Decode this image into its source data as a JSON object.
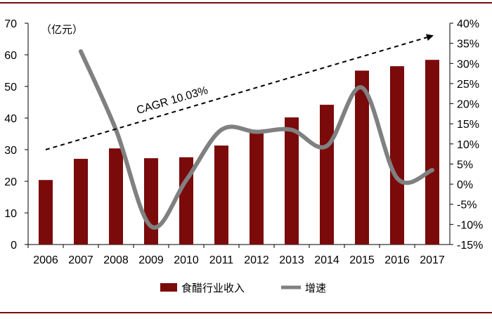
{
  "chart_data": {
    "type": "bar",
    "unit_label": "（亿元）",
    "annotation": "CAGR 10.03%",
    "categories": [
      "2006",
      "2007",
      "2008",
      "2009",
      "2010",
      "2011",
      "2012",
      "2013",
      "2014",
      "2015",
      "2016",
      "2017"
    ],
    "series": [
      {
        "name": "食醋行业收入",
        "type": "bar",
        "axis": "left",
        "color": "#7b0a0a",
        "values": [
          20.4,
          27.1,
          30.4,
          27.3,
          27.6,
          31.3,
          35.6,
          40.2,
          44.2,
          55.0,
          56.4,
          58.4
        ]
      },
      {
        "name": "增速",
        "type": "line",
        "axis": "right",
        "color": "#808080",
        "values": [
          null,
          33.0,
          13.5,
          -10.5,
          1.0,
          13.5,
          13.0,
          13.5,
          9.5,
          24.0,
          1.5,
          3.5
        ]
      }
    ],
    "y_left": {
      "min": 0,
      "max": 70,
      "ticks": [
        "0",
        "10",
        "20",
        "30",
        "40",
        "50",
        "60",
        "70"
      ]
    },
    "y_right": {
      "min": -15,
      "max": 40,
      "ticks": [
        "-15%",
        "-10%",
        "-5%",
        "0%",
        "5%",
        "10%",
        "15%",
        "20%",
        "25%",
        "30%",
        "35%",
        "40%"
      ]
    },
    "trend_arrow": {
      "from": {
        "x": "2006",
        "y": 30
      },
      "to": {
        "x": "2017",
        "y": 66
      }
    },
    "legend_position": "bottom-center",
    "grid": false
  }
}
